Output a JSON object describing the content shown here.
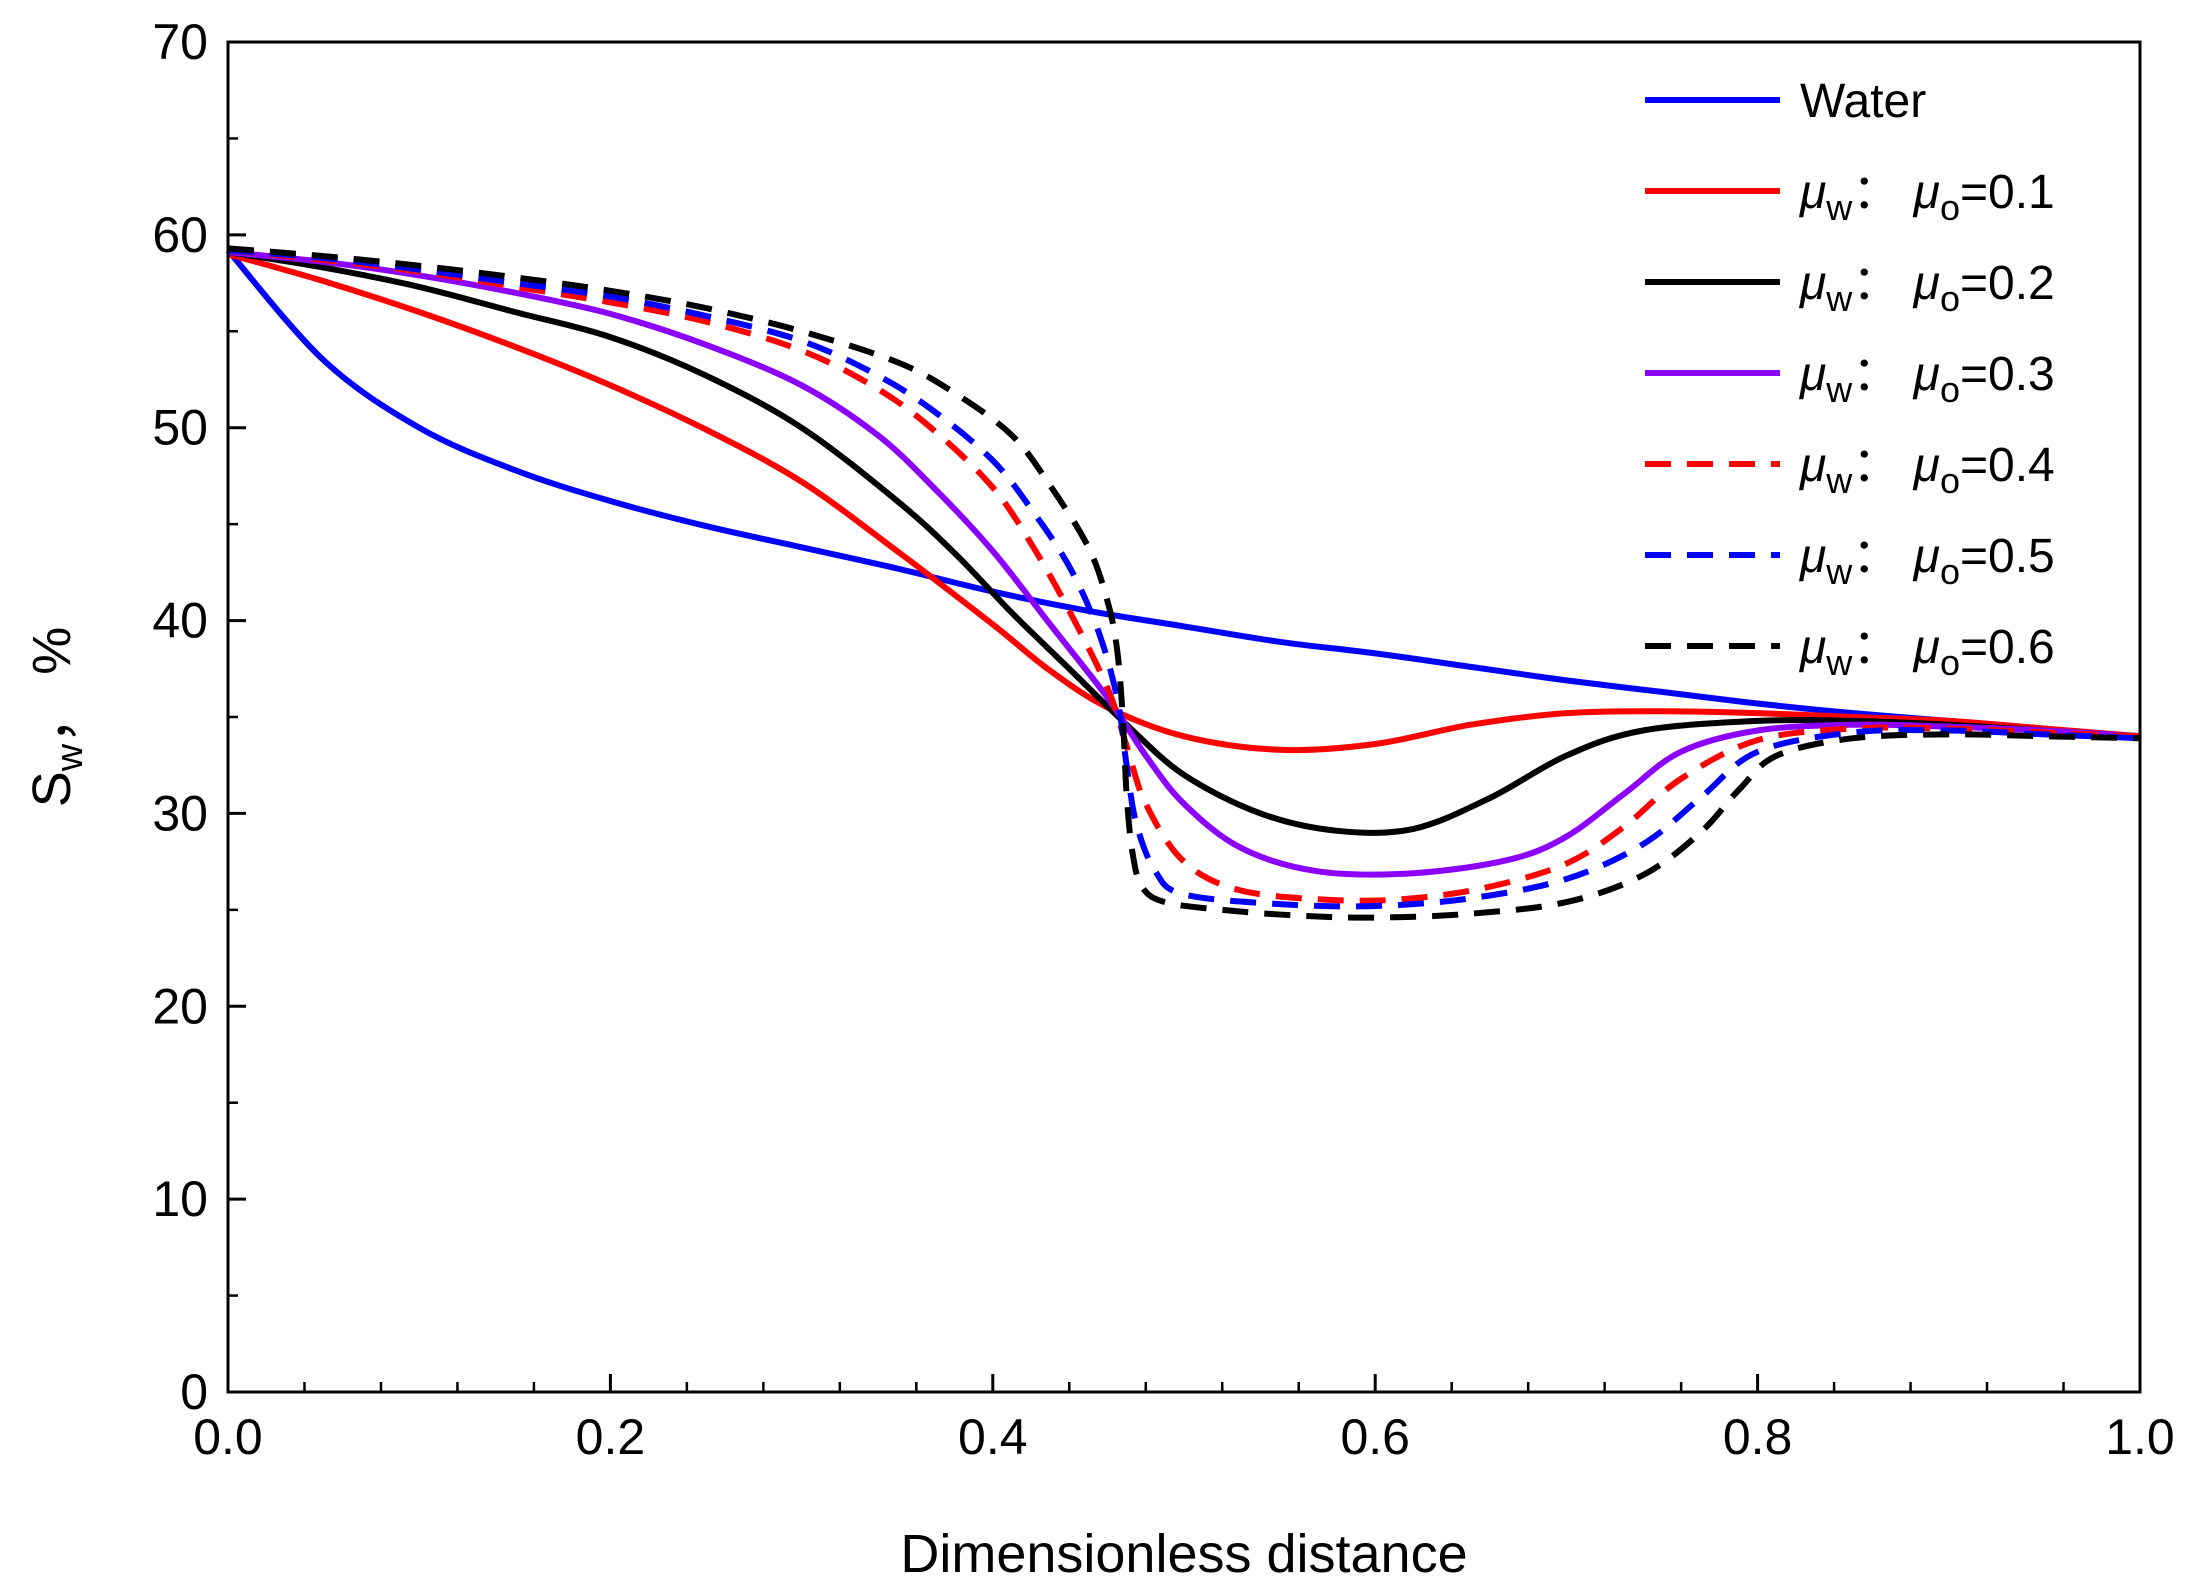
{
  "chart_data": {
    "type": "line",
    "title": "",
    "xlabel": "Dimensionless distance",
    "ylabel_main": "S",
    "ylabel_sub": "w",
    "ylabel_unit": "，  %",
    "xlim": [
      0,
      1
    ],
    "ylim": [
      0,
      70
    ],
    "x_ticks": [
      "0.0",
      "0.2",
      "0.4",
      "0.6",
      "0.8",
      "1.0"
    ],
    "x_tick_values": [
      0,
      0.2,
      0.4,
      0.6,
      0.8,
      1.0
    ],
    "y_ticks": [
      "0",
      "10",
      "20",
      "30",
      "40",
      "50",
      "60",
      "70"
    ],
    "y_tick_values": [
      0,
      10,
      20,
      30,
      40,
      50,
      60,
      70
    ],
    "legend_position": "top-right",
    "series": [
      {
        "name": "Water",
        "legend": {
          "plain": "Water"
        },
        "color": "#0000ff",
        "dash": "solid",
        "points": [
          [
            0,
            59.2
          ],
          [
            0.05,
            53.5
          ],
          [
            0.1,
            50.0
          ],
          [
            0.15,
            47.8
          ],
          [
            0.2,
            46.2
          ],
          [
            0.25,
            44.9
          ],
          [
            0.3,
            43.8
          ],
          [
            0.35,
            42.7
          ],
          [
            0.4,
            41.5
          ],
          [
            0.45,
            40.5
          ],
          [
            0.5,
            39.7
          ],
          [
            0.55,
            38.9
          ],
          [
            0.6,
            38.3
          ],
          [
            0.65,
            37.6
          ],
          [
            0.7,
            36.9
          ],
          [
            0.75,
            36.3
          ],
          [
            0.8,
            35.7
          ],
          [
            0.85,
            35.2
          ],
          [
            0.9,
            34.8
          ],
          [
            0.95,
            34.4
          ],
          [
            1.0,
            33.9
          ]
        ]
      },
      {
        "name": "μw: μo=0.1",
        "legend": {
          "a": "μ",
          "a_sub": "w",
          "sep": "：  ",
          "b": "μ",
          "b_sub": "o",
          "val": "=0.1"
        },
        "color": "#ff0000",
        "dash": "solid",
        "points": [
          [
            0,
            59.0
          ],
          [
            0.05,
            57.6
          ],
          [
            0.1,
            56.0
          ],
          [
            0.15,
            54.2
          ],
          [
            0.2,
            52.2
          ],
          [
            0.25,
            49.9
          ],
          [
            0.3,
            47.2
          ],
          [
            0.35,
            43.6
          ],
          [
            0.4,
            39.8
          ],
          [
            0.43,
            37.4
          ],
          [
            0.46,
            35.5
          ],
          [
            0.5,
            34.0
          ],
          [
            0.55,
            33.3
          ],
          [
            0.6,
            33.6
          ],
          [
            0.65,
            34.6
          ],
          [
            0.7,
            35.2
          ],
          [
            0.75,
            35.3
          ],
          [
            0.8,
            35.2
          ],
          [
            0.85,
            35.0
          ],
          [
            0.9,
            34.8
          ],
          [
            0.95,
            34.4
          ],
          [
            1.0,
            34.0
          ]
        ]
      },
      {
        "name": "μw: μo=0.2",
        "legend": {
          "a": "μ",
          "a_sub": "w",
          "sep": "：  ",
          "b": "μ",
          "b_sub": "o",
          "val": "=0.2"
        },
        "color": "#000000",
        "dash": "solid",
        "points": [
          [
            0,
            59.1
          ],
          [
            0.05,
            58.3
          ],
          [
            0.1,
            57.3
          ],
          [
            0.15,
            56.0
          ],
          [
            0.2,
            54.7
          ],
          [
            0.25,
            52.7
          ],
          [
            0.3,
            50.0
          ],
          [
            0.35,
            46.2
          ],
          [
            0.38,
            43.5
          ],
          [
            0.41,
            40.4
          ],
          [
            0.44,
            37.5
          ],
          [
            0.47,
            34.6
          ],
          [
            0.5,
            32.0
          ],
          [
            0.54,
            30.0
          ],
          [
            0.58,
            29.1
          ],
          [
            0.62,
            29.2
          ],
          [
            0.66,
            30.8
          ],
          [
            0.7,
            33.0
          ],
          [
            0.74,
            34.3
          ],
          [
            0.8,
            34.8
          ],
          [
            0.85,
            34.8
          ],
          [
            0.9,
            34.6
          ],
          [
            0.95,
            34.3
          ],
          [
            1.0,
            34.0
          ]
        ]
      },
      {
        "name": "μw: μo=0.3",
        "legend": {
          "a": "μ",
          "a_sub": "w",
          "sep": "：  ",
          "b": "μ",
          "b_sub": "o",
          "val": "=0.3"
        },
        "color": "#8b00ff",
        "dash": "solid",
        "points": [
          [
            0,
            59.1
          ],
          [
            0.05,
            58.6
          ],
          [
            0.1,
            57.9
          ],
          [
            0.15,
            57.0
          ],
          [
            0.2,
            55.9
          ],
          [
            0.25,
            54.3
          ],
          [
            0.3,
            52.2
          ],
          [
            0.34,
            49.6
          ],
          [
            0.37,
            46.8
          ],
          [
            0.4,
            43.6
          ],
          [
            0.43,
            39.8
          ],
          [
            0.46,
            36.0
          ],
          [
            0.48,
            33.0
          ],
          [
            0.5,
            30.5
          ],
          [
            0.53,
            28.2
          ],
          [
            0.57,
            27.0
          ],
          [
            0.62,
            26.9
          ],
          [
            0.67,
            27.6
          ],
          [
            0.7,
            28.8
          ],
          [
            0.73,
            31.0
          ],
          [
            0.76,
            33.2
          ],
          [
            0.8,
            34.3
          ],
          [
            0.85,
            34.6
          ],
          [
            0.9,
            34.5
          ],
          [
            0.95,
            34.3
          ],
          [
            1.0,
            34.0
          ]
        ]
      },
      {
        "name": "μw: μo=0.4",
        "legend": {
          "a": "μ",
          "a_sub": "w",
          "sep": "：  ",
          "b": "μ",
          "b_sub": "o",
          "val": "=0.4"
        },
        "color": "#ff0000",
        "dash": "dashed",
        "points": [
          [
            0,
            59.2
          ],
          [
            0.05,
            58.7
          ],
          [
            0.1,
            58.1
          ],
          [
            0.15,
            57.3
          ],
          [
            0.2,
            56.5
          ],
          [
            0.25,
            55.5
          ],
          [
            0.3,
            54.0
          ],
          [
            0.34,
            52.0
          ],
          [
            0.37,
            49.8
          ],
          [
            0.4,
            46.9
          ],
          [
            0.42,
            44.0
          ],
          [
            0.44,
            40.5
          ],
          [
            0.46,
            36.5
          ],
          [
            0.47,
            33.5
          ],
          [
            0.48,
            30.5
          ],
          [
            0.5,
            27.5
          ],
          [
            0.53,
            26.0
          ],
          [
            0.58,
            25.5
          ],
          [
            0.62,
            25.6
          ],
          [
            0.66,
            26.2
          ],
          [
            0.7,
            27.4
          ],
          [
            0.73,
            29.3
          ],
          [
            0.76,
            31.8
          ],
          [
            0.8,
            33.8
          ],
          [
            0.85,
            34.4
          ],
          [
            0.9,
            34.4
          ],
          [
            0.95,
            34.2
          ],
          [
            1.0,
            34.0
          ]
        ]
      },
      {
        "name": "μw: μo=0.5",
        "legend": {
          "a": "μ",
          "a_sub": "w",
          "sep": "：  ",
          "b": "μ",
          "b_sub": "o",
          "val": "=0.5"
        },
        "color": "#0000ff",
        "dash": "dashed",
        "points": [
          [
            0,
            59.2
          ],
          [
            0.05,
            58.8
          ],
          [
            0.1,
            58.2
          ],
          [
            0.15,
            57.5
          ],
          [
            0.2,
            56.8
          ],
          [
            0.25,
            55.8
          ],
          [
            0.3,
            54.5
          ],
          [
            0.34,
            52.7
          ],
          [
            0.37,
            50.8
          ],
          [
            0.4,
            48.3
          ],
          [
            0.42,
            45.8
          ],
          [
            0.44,
            42.8
          ],
          [
            0.455,
            39.5
          ],
          [
            0.465,
            36.0
          ],
          [
            0.47,
            32.5
          ],
          [
            0.475,
            29.5
          ],
          [
            0.485,
            27.0
          ],
          [
            0.5,
            25.8
          ],
          [
            0.55,
            25.3
          ],
          [
            0.6,
            25.2
          ],
          [
            0.65,
            25.6
          ],
          [
            0.7,
            26.6
          ],
          [
            0.74,
            28.4
          ],
          [
            0.77,
            30.8
          ],
          [
            0.8,
            33.2
          ],
          [
            0.85,
            34.2
          ],
          [
            0.9,
            34.3
          ],
          [
            0.95,
            34.1
          ],
          [
            1.0,
            33.9
          ]
        ]
      },
      {
        "name": "μw: μo=0.6",
        "legend": {
          "a": "μ",
          "a_sub": "w",
          "sep": "：  ",
          "b": "μ",
          "b_sub": "o",
          "val": "=0.6"
        },
        "color": "#000000",
        "dash": "dashed",
        "points": [
          [
            0,
            59.3
          ],
          [
            0.05,
            58.9
          ],
          [
            0.1,
            58.4
          ],
          [
            0.15,
            57.8
          ],
          [
            0.2,
            57.1
          ],
          [
            0.25,
            56.2
          ],
          [
            0.3,
            55.0
          ],
          [
            0.35,
            53.4
          ],
          [
            0.38,
            51.8
          ],
          [
            0.41,
            49.6
          ],
          [
            0.43,
            47.0
          ],
          [
            0.45,
            43.8
          ],
          [
            0.46,
            41.0
          ],
          [
            0.465,
            38.5
          ],
          [
            0.468,
            35.0
          ],
          [
            0.47,
            31.0
          ],
          [
            0.473,
            28.0
          ],
          [
            0.478,
            26.2
          ],
          [
            0.49,
            25.4
          ],
          [
            0.52,
            25.0
          ],
          [
            0.56,
            24.7
          ],
          [
            0.6,
            24.6
          ],
          [
            0.65,
            24.8
          ],
          [
            0.7,
            25.4
          ],
          [
            0.74,
            26.8
          ],
          [
            0.77,
            29.0
          ],
          [
            0.79,
            31.2
          ],
          [
            0.81,
            33.0
          ],
          [
            0.85,
            33.9
          ],
          [
            0.9,
            34.1
          ],
          [
            0.95,
            34.0
          ],
          [
            1.0,
            33.9
          ]
        ]
      }
    ]
  }
}
